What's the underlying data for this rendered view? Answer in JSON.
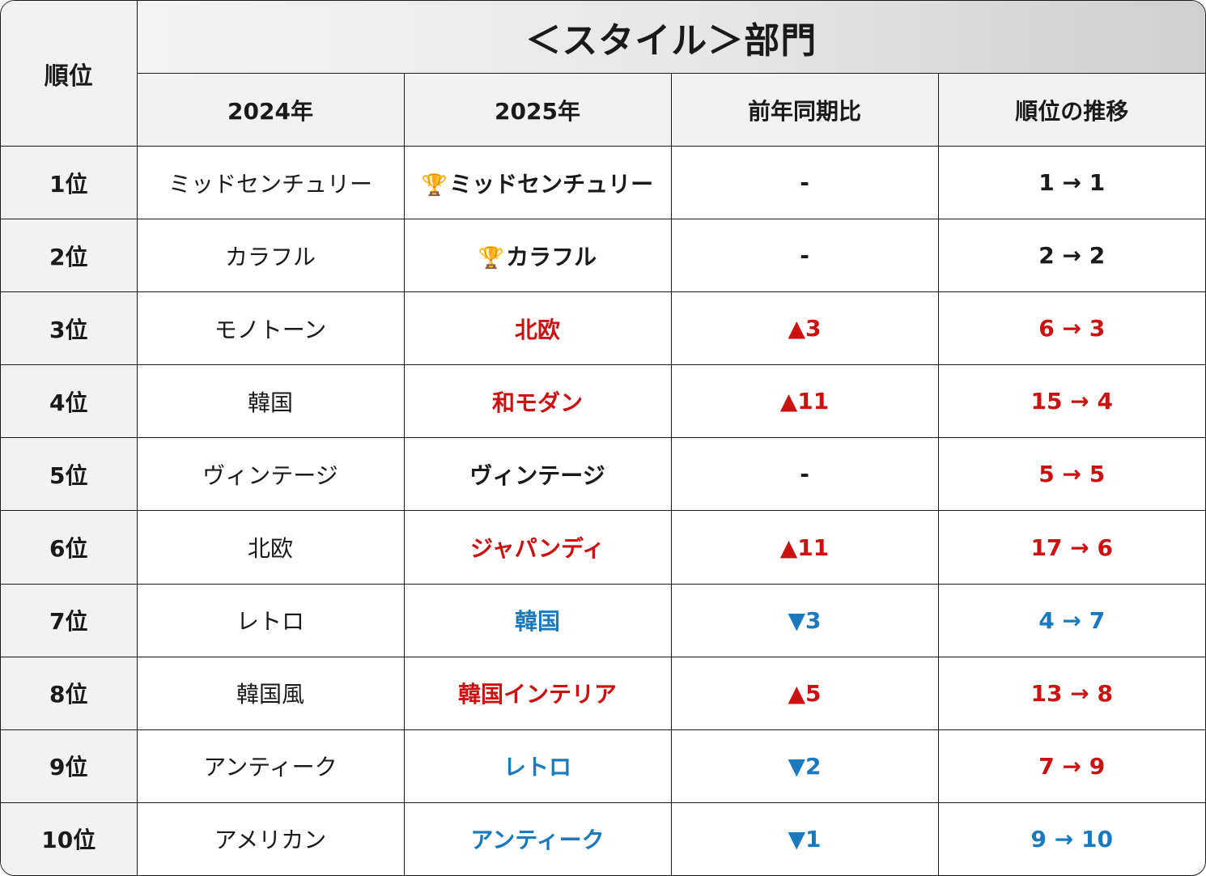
{
  "table": {
    "title": "＜スタイル＞部門",
    "rank_header": "順位",
    "columns": [
      "2024年",
      "2025年",
      "前年同期比",
      "順位の推移"
    ],
    "colors": {
      "black": "#1a1a1a",
      "red": "#cc1111",
      "blue": "#1a7abf"
    },
    "rows": [
      {
        "rank": "1位",
        "y2024": "ミッドセンチュリー",
        "y2025": "ミッドセンチュリー",
        "trophy": true,
        "change": "-",
        "trend": "1 → 1",
        "color": "black",
        "trend_color": "black"
      },
      {
        "rank": "2位",
        "y2024": "カラフル",
        "y2025": "カラフル",
        "trophy": true,
        "change": "-",
        "trend": "2 → 2",
        "color": "black",
        "trend_color": "black"
      },
      {
        "rank": "3位",
        "y2024": "モノトーン",
        "y2025": "北欧",
        "trophy": false,
        "change": "▲3",
        "trend": "6 → 3",
        "color": "red",
        "trend_color": "red"
      },
      {
        "rank": "4位",
        "y2024": "韓国",
        "y2025": "和モダン",
        "trophy": false,
        "change": "▲11",
        "trend": "15 → 4",
        "color": "red",
        "trend_color": "red"
      },
      {
        "rank": "5位",
        "y2024": "ヴィンテージ",
        "y2025": "ヴィンテージ",
        "trophy": false,
        "change": "-",
        "trend": "5 → 5",
        "color": "black",
        "trend_color": "red"
      },
      {
        "rank": "6位",
        "y2024": "北欧",
        "y2025": "ジャパンディ",
        "trophy": false,
        "change": "▲11",
        "trend": "17 → 6",
        "color": "red",
        "trend_color": "red"
      },
      {
        "rank": "7位",
        "y2024": "レトロ",
        "y2025": "韓国",
        "trophy": false,
        "change": "▼3",
        "trend": "4 → 7",
        "color": "blue",
        "trend_color": "blue"
      },
      {
        "rank": "8位",
        "y2024": "韓国風",
        "y2025": "韓国インテリア",
        "trophy": false,
        "change": "▲5",
        "trend": "13 → 8",
        "color": "red",
        "trend_color": "red"
      },
      {
        "rank": "9位",
        "y2024": "アンティーク",
        "y2025": "レトロ",
        "trophy": false,
        "change": "▼2",
        "trend": "7 → 9",
        "color": "blue",
        "trend_color": "red"
      },
      {
        "rank": "10位",
        "y2024": "アメリカン",
        "y2025": "アンティーク",
        "trophy": false,
        "change": "▼1",
        "trend": "9 → 10",
        "color": "blue",
        "trend_color": "blue"
      }
    ]
  }
}
